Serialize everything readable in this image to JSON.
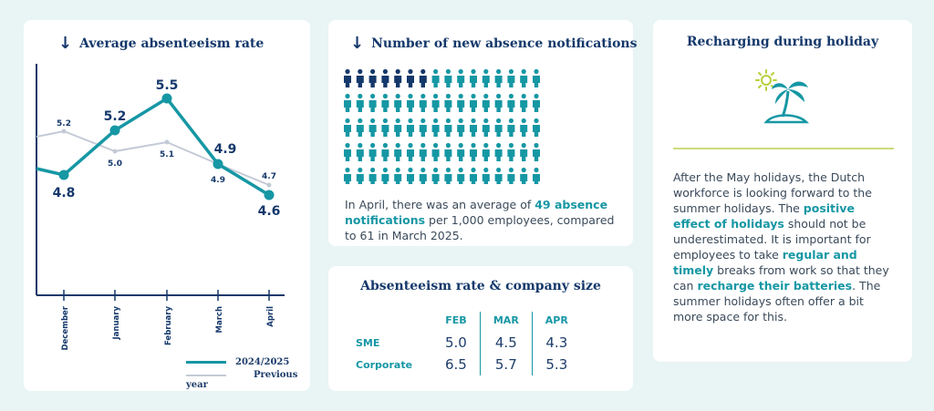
{
  "chart_data": {
    "type": "line",
    "title": "Average absenteeism rate",
    "categories": [
      "December",
      "January",
      "February",
      "March",
      "April"
    ],
    "series": [
      {
        "name": "2024/2025",
        "values": [
          4.8,
          5.2,
          5.5,
          4.9,
          4.6
        ],
        "labels": [
          "4.8",
          "5.2",
          "5.5",
          "4.9",
          "4.6"
        ],
        "color": "#1697a4"
      },
      {
        "name": "Previous year",
        "values": [
          5.2,
          5.0,
          5.1,
          4.9,
          4.7
        ],
        "labels": [
          "5.2",
          "5.0",
          "5.1",
          "4.9",
          "4.7"
        ],
        "color": "#c3cad6"
      }
    ],
    "xlabel": "",
    "ylabel": "",
    "grid": false,
    "legend": "bottom-right"
  },
  "notifications": {
    "title": "Number of new absence notifications",
    "count_highlighted": 7,
    "count_total": 80,
    "colors": {
      "highlight": "#14386b",
      "base": "#1697a4"
    },
    "text_pre": "In April, there was an average of ",
    "text_hl": "49 absence notifications",
    "text_post": " per 1,000 employees, compared to 61 in March 2025."
  },
  "company_size": {
    "title": "Absenteeism rate & company size",
    "columns": [
      "FEB",
      "MAR",
      "APR"
    ],
    "rows": [
      {
        "label": "SME",
        "values": [
          "5.0",
          "4.5",
          "4.3"
        ]
      },
      {
        "label": "Corporate",
        "values": [
          "6.5",
          "5.7",
          "5.3"
        ]
      }
    ]
  },
  "holiday": {
    "title": "Recharging during holiday",
    "icon": "palm-island-icon",
    "p1": "After the May holidays, the Dutch workforce is looking forward to the summer holidays. The ",
    "h1": "positive effect of holidays",
    "p2": " should not be underestimated. It is important for employees to take ",
    "h2": "regular and timely",
    "p3": " breaks from work so that they can ",
    "h3": "recharge their batteries",
    "p4": ". The summer holidays often offer a bit more space for this."
  }
}
